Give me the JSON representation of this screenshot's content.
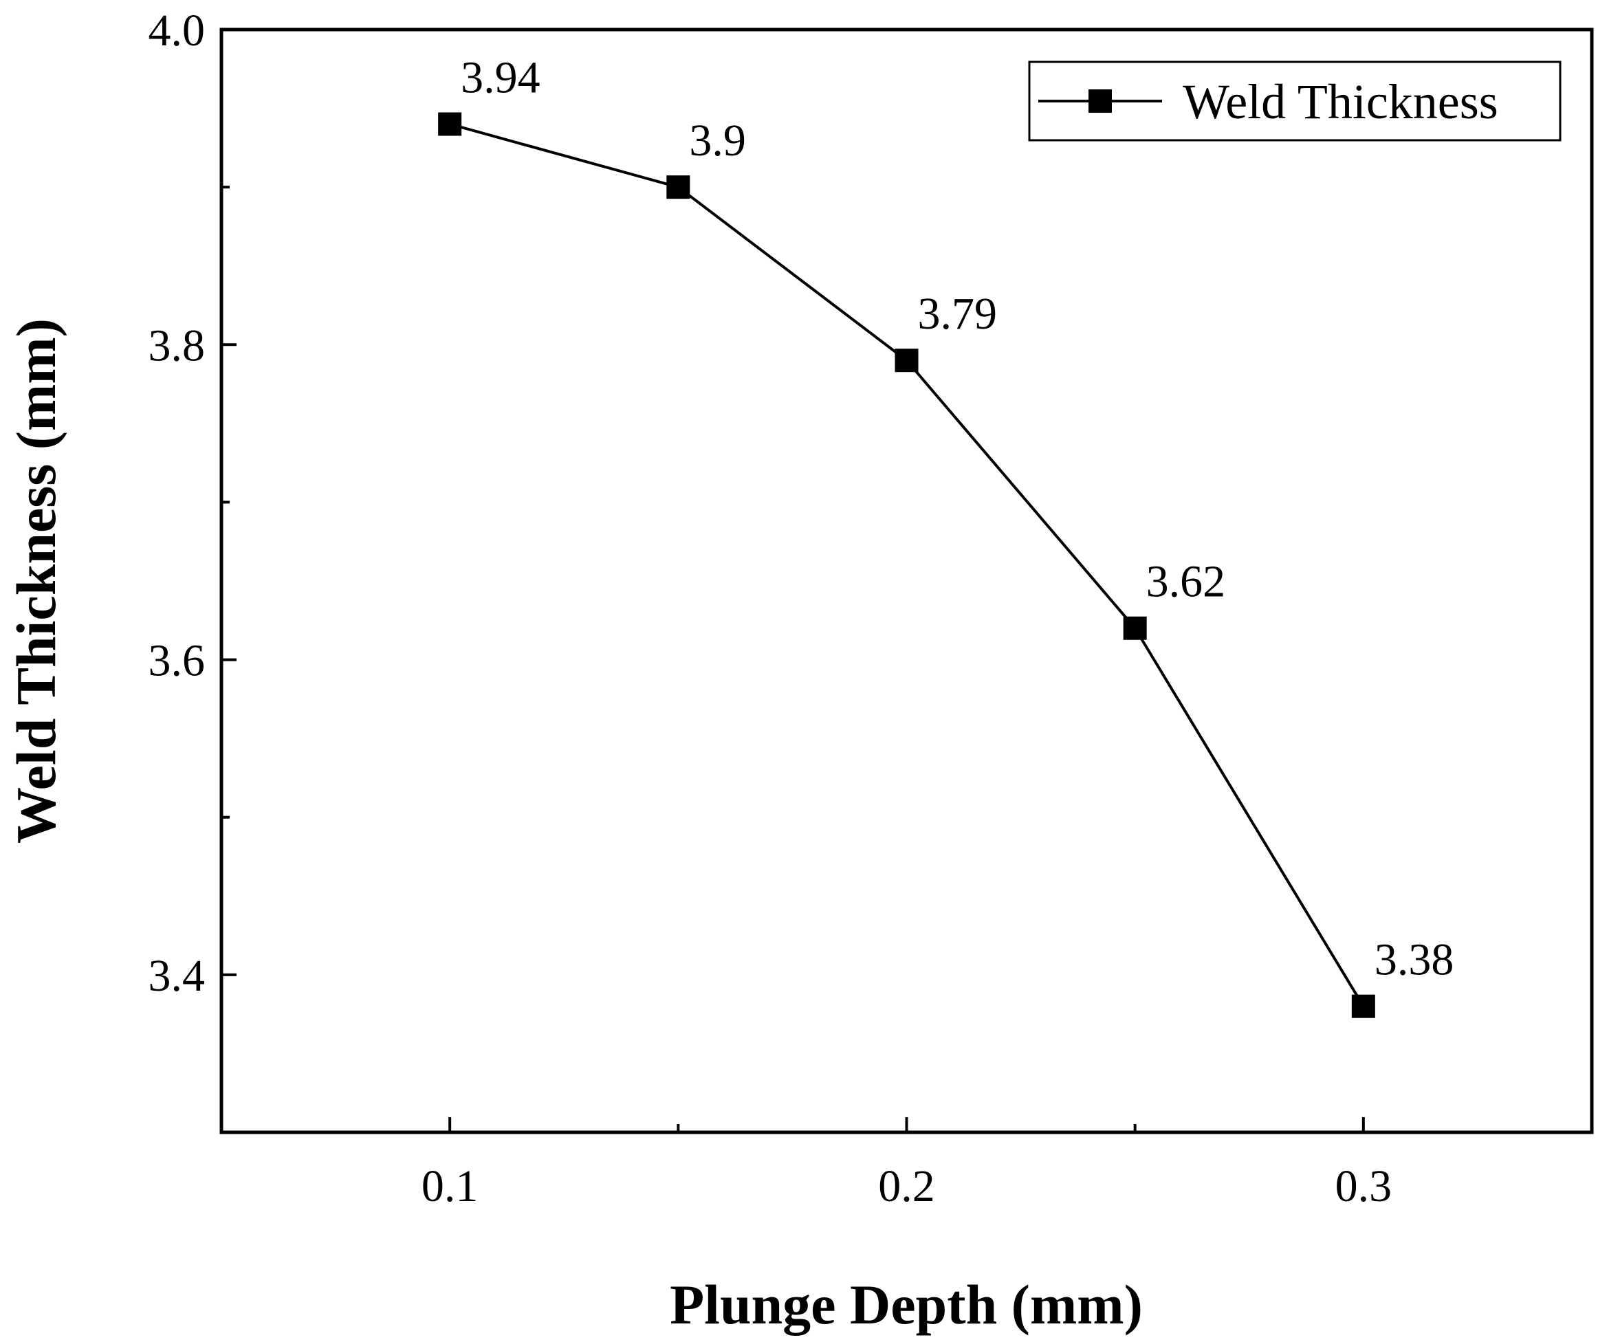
{
  "chart_data": {
    "type": "line",
    "title": "",
    "xlabel": "Plunge Depth (mm)",
    "ylabel": "Weld Thickness (mm)",
    "xlim": [
      0.05,
      0.35
    ],
    "ylim": [
      3.3,
      4.0
    ],
    "x_ticks": [
      0.1,
      0.2,
      0.3
    ],
    "x_tick_labels": [
      "0.1",
      "0.2",
      "0.3"
    ],
    "x_minor_ticks": [
      0.15,
      0.25
    ],
    "y_ticks": [
      3.4,
      3.6,
      3.8,
      4.0
    ],
    "y_tick_labels": [
      "3.4",
      "3.6",
      "3.8",
      "4.0"
    ],
    "y_minor_ticks": [
      3.5,
      3.7,
      3.9
    ],
    "grid": false,
    "legend_position": "top-right",
    "series": [
      {
        "name": "Weld Thickness",
        "color": "#000000",
        "marker": "square",
        "x": [
          0.1,
          0.15,
          0.2,
          0.25,
          0.3
        ],
        "y": [
          3.94,
          3.9,
          3.79,
          3.62,
          3.38
        ],
        "labels": [
          "3.94",
          "3.9",
          "3.79",
          "3.62",
          "3.38"
        ]
      }
    ]
  }
}
